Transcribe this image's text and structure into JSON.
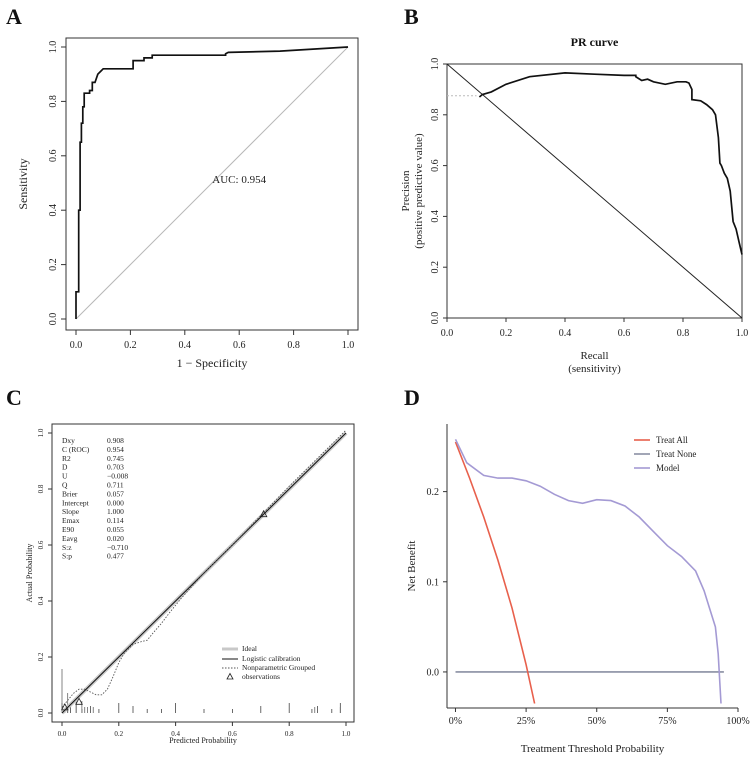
{
  "panel_labels": [
    "A",
    "B",
    "C",
    "D"
  ],
  "chart_data": [
    {
      "type": "line",
      "id": "roc",
      "title": "",
      "xlabel": "1 − Specificity",
      "ylabel": "Sensitivity",
      "xlim": [
        0,
        1
      ],
      "ylim": [
        0,
        1
      ],
      "xticks": [
        0.0,
        0.2,
        0.4,
        0.6,
        0.8,
        1.0
      ],
      "xtick_labels": [
        "0.0",
        "0.2",
        "0.4",
        "0.6",
        "0.8",
        "1.0"
      ],
      "yticks": [
        0.0,
        0.2,
        0.4,
        0.6,
        0.8,
        1.0
      ],
      "ytick_labels": [
        "0.0",
        "0.2",
        "0.4",
        "0.6",
        "0.8",
        "1.0"
      ],
      "annotation": "AUC: 0.954",
      "annotation_at": [
        0.6,
        0.5
      ],
      "series": [
        {
          "name": "ROC",
          "x": [
            0,
            0,
            0.01,
            0.01,
            0.015,
            0.015,
            0.02,
            0.02,
            0.025,
            0.025,
            0.03,
            0.03,
            0.05,
            0.05,
            0.06,
            0.06,
            0.07,
            0.08,
            0.09,
            0.1,
            0.12,
            0.2,
            0.21,
            0.21,
            0.25,
            0.25,
            0.28,
            0.28,
            0.55,
            0.55,
            0.56,
            0.75,
            1.0
          ],
          "y": [
            0,
            0.1,
            0.1,
            0.4,
            0.4,
            0.65,
            0.65,
            0.72,
            0.72,
            0.78,
            0.78,
            0.83,
            0.83,
            0.84,
            0.84,
            0.87,
            0.87,
            0.9,
            0.91,
            0.92,
            0.92,
            0.92,
            0.92,
            0.95,
            0.95,
            0.96,
            0.96,
            0.97,
            0.97,
            0.975,
            0.98,
            0.985,
            1.0
          ]
        },
        {
          "name": "reference",
          "x": [
            0,
            1
          ],
          "y": [
            0,
            1
          ]
        }
      ]
    },
    {
      "type": "line",
      "id": "pr",
      "title": "PR curve",
      "xlabel": "Recall",
      "xlabel2": "(sensitivity)",
      "ylabel": "Precision",
      "ylabel2": "(positive predictive value)",
      "xlim": [
        0,
        1
      ],
      "ylim": [
        0,
        1
      ],
      "xticks": [
        0.0,
        0.2,
        0.4,
        0.6,
        0.8,
        1.0
      ],
      "xtick_labels": [
        "0.0",
        "0.2",
        "0.4",
        "0.6",
        "0.8",
        "1.0"
      ],
      "yticks": [
        0.0,
        0.2,
        0.4,
        0.6,
        0.8,
        1.0
      ],
      "ytick_labels": [
        "0.0",
        "0.2",
        "0.4",
        "0.6",
        "0.8",
        "1.0"
      ],
      "series": [
        {
          "name": "PR",
          "x": [
            0.11,
            0.12,
            0.15,
            0.2,
            0.28,
            0.4,
            0.5,
            0.6,
            0.64,
            0.64,
            0.66,
            0.68,
            0.7,
            0.74,
            0.78,
            0.81,
            0.82,
            0.83,
            0.83,
            0.86,
            0.88,
            0.9,
            0.91,
            0.92,
            0.925,
            0.93,
            0.94,
            0.95,
            0.96,
            0.97,
            0.98,
            0.99,
            1.0
          ],
          "y": [
            0.87,
            0.88,
            0.89,
            0.92,
            0.95,
            0.965,
            0.96,
            0.955,
            0.955,
            0.95,
            0.935,
            0.94,
            0.93,
            0.92,
            0.93,
            0.93,
            0.925,
            0.9,
            0.86,
            0.855,
            0.84,
            0.82,
            0.8,
            0.71,
            0.61,
            0.6,
            0.57,
            0.55,
            0.5,
            0.38,
            0.35,
            0.3,
            0.25
          ]
        },
        {
          "name": "extension",
          "x": [
            0,
            0.1
          ],
          "y": [
            0.875,
            0.875
          ]
        },
        {
          "name": "reference",
          "x": [
            0,
            1
          ],
          "y": [
            1,
            0
          ]
        }
      ]
    },
    {
      "type": "line",
      "id": "calibration",
      "title": "",
      "xlabel": "Predicted Probability",
      "ylabel": "Actual Probability",
      "xlim": [
        0,
        1
      ],
      "ylim": [
        0,
        1
      ],
      "xticks": [
        0.0,
        0.2,
        0.4,
        0.6,
        0.8,
        1.0
      ],
      "xtick_labels": [
        "0.0",
        "0.2",
        "0.4",
        "0.6",
        "0.8",
        "1.0"
      ],
      "yticks": [
        0.0,
        0.2,
        0.4,
        0.6,
        0.8,
        1.0
      ],
      "ytick_labels": [
        "0.0",
        "0.2",
        "0.4",
        "0.6",
        "0.8",
        "1.0"
      ],
      "stats": [
        {
          "label": "Dxy",
          "value": "0.908"
        },
        {
          "label": "C (ROC)",
          "value": "0.954"
        },
        {
          "label": "R2",
          "value": "0.745"
        },
        {
          "label": "D",
          "value": "0.703"
        },
        {
          "label": "U",
          "value": "−0.008"
        },
        {
          "label": "Q",
          "value": "0.711"
        },
        {
          "label": "Brier",
          "value": "0.057"
        },
        {
          "label": "Intercept",
          "value": "0.000"
        },
        {
          "label": "Slope",
          "value": "1.000"
        },
        {
          "label": "Emax",
          "value": "0.114"
        },
        {
          "label": "E90",
          "value": "0.055"
        },
        {
          "label": "Eavg",
          "value": "0.020"
        },
        {
          "label": "S:z",
          "value": "−0.710"
        },
        {
          "label": "S:p",
          "value": "0.477"
        }
      ],
      "legend": [
        "Ideal",
        "Logistic calibration",
        "Nonparametric Grouped",
        "observations"
      ],
      "series": [
        {
          "name": "Ideal",
          "x": [
            0,
            1
          ],
          "y": [
            0,
            1
          ]
        },
        {
          "name": "Logistic calibration",
          "x": [
            0,
            0.02,
            0.05,
            0.1,
            0.2,
            0.4,
            0.6,
            0.8,
            1.0
          ],
          "y": [
            0,
            0.02,
            0.05,
            0.1,
            0.2,
            0.4,
            0.6,
            0.8,
            1.0
          ]
        },
        {
          "name": "Nonparametric Grouped",
          "x": [
            0.0,
            0.02,
            0.04,
            0.06,
            0.08,
            0.1,
            0.12,
            0.14,
            0.16,
            0.18,
            0.2,
            0.22,
            0.25,
            0.28,
            0.3,
            0.32,
            0.35,
            0.38,
            0.42,
            0.5,
            0.6,
            0.7,
            0.8,
            0.9,
            1.0
          ],
          "y": [
            0.02,
            0.045,
            0.07,
            0.085,
            0.085,
            0.075,
            0.065,
            0.065,
            0.085,
            0.13,
            0.18,
            0.215,
            0.245,
            0.255,
            0.26,
            0.285,
            0.32,
            0.36,
            0.41,
            0.5,
            0.6,
            0.705,
            0.81,
            0.91,
            1.01
          ]
        },
        {
          "name": "observations",
          "x": [
            0.01,
            0.06,
            0.71
          ],
          "y": [
            0.02,
            0.04,
            0.71
          ]
        }
      ],
      "rug_top": [
        0.0,
        0.01,
        0.02,
        0.03,
        0.05,
        0.07,
        0.1,
        0.13,
        0.2,
        0.25,
        0.3,
        0.35,
        0.4,
        0.5,
        0.6,
        0.7,
        0.8,
        0.88,
        0.9,
        0.95,
        0.98
      ],
      "rug_bottom": [
        0.0,
        0.02,
        0.05,
        0.07,
        0.08,
        0.09,
        0.11,
        0.89,
        0.98
      ]
    },
    {
      "type": "line",
      "id": "dca",
      "title": "",
      "xlabel": "Treatment Threshold Probability",
      "ylabel": "Net Benefit",
      "xlim": [
        -0.03,
        1.0
      ],
      "ylim": [
        -0.04,
        0.275
      ],
      "xticks": [
        0,
        0.25,
        0.5,
        0.75,
        1.0
      ],
      "xtick_labels": [
        "0%",
        "25%",
        "50%",
        "75%",
        "100%"
      ],
      "yticks": [
        0.0,
        0.1,
        0.2
      ],
      "ytick_labels": [
        "0.0",
        "0.1",
        "0.2"
      ],
      "legend": [
        "Treat All",
        "Treat None",
        "Model"
      ],
      "colors": {
        "treat_all": "#e8604c",
        "treat_none": "#8a8fa3",
        "model": "#a49ad4"
      },
      "series": [
        {
          "name": "Treat All",
          "x": [
            0,
            0.05,
            0.1,
            0.15,
            0.2,
            0.25,
            0.28
          ],
          "y": [
            0.255,
            0.215,
            0.172,
            0.124,
            0.071,
            0.008,
            -0.035
          ]
        },
        {
          "name": "Treat None",
          "x": [
            0,
            0.95
          ],
          "y": [
            0,
            0
          ]
        },
        {
          "name": "Model",
          "x": [
            0,
            0.04,
            0.1,
            0.15,
            0.2,
            0.25,
            0.3,
            0.35,
            0.4,
            0.45,
            0.5,
            0.55,
            0.6,
            0.65,
            0.7,
            0.75,
            0.8,
            0.85,
            0.88,
            0.9,
            0.92,
            0.93,
            0.94
          ],
          "y": [
            0.258,
            0.232,
            0.218,
            0.215,
            0.215,
            0.212,
            0.206,
            0.197,
            0.19,
            0.187,
            0.191,
            0.19,
            0.184,
            0.172,
            0.156,
            0.14,
            0.128,
            0.112,
            0.09,
            0.07,
            0.05,
            0.02,
            -0.035
          ]
        }
      ]
    }
  ]
}
